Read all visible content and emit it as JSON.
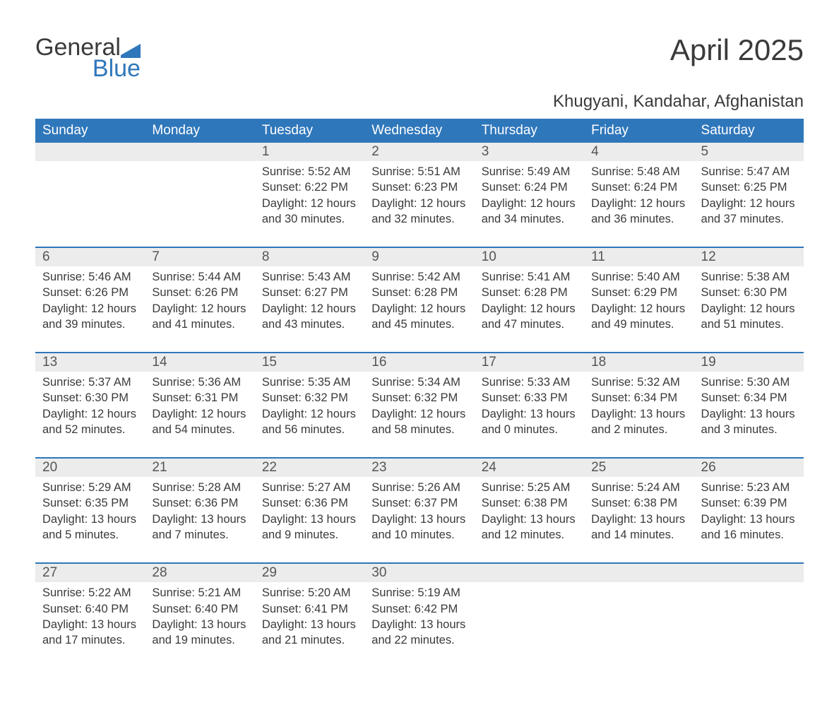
{
  "brand": {
    "word1": "General",
    "word2": "Blue"
  },
  "title": "April 2025",
  "location": "Khugyani, Kandahar, Afghanistan",
  "colors": {
    "header_bg": "#2f77bb",
    "header_text": "#ffffff",
    "daynum_bg": "#ececec",
    "row_border": "#2f77bb",
    "text": "#3a3a3a",
    "brand_blue": "#2f77bb",
    "background": "#ffffff"
  },
  "typography": {
    "month_fontsize": 42,
    "location_fontsize": 24,
    "header_fontsize": 19,
    "daynum_fontsize": 19,
    "body_fontsize": 16.5,
    "logo_fontsize": 34
  },
  "weekdays": [
    "Sunday",
    "Monday",
    "Tuesday",
    "Wednesday",
    "Thursday",
    "Friday",
    "Saturday"
  ],
  "weeks": [
    [
      {
        "day": "",
        "lines": []
      },
      {
        "day": "",
        "lines": []
      },
      {
        "day": "1",
        "lines": [
          "Sunrise: 5:52 AM",
          "Sunset: 6:22 PM",
          "Daylight: 12 hours and 30 minutes."
        ]
      },
      {
        "day": "2",
        "lines": [
          "Sunrise: 5:51 AM",
          "Sunset: 6:23 PM",
          "Daylight: 12 hours and 32 minutes."
        ]
      },
      {
        "day": "3",
        "lines": [
          "Sunrise: 5:49 AM",
          "Sunset: 6:24 PM",
          "Daylight: 12 hours and 34 minutes."
        ]
      },
      {
        "day": "4",
        "lines": [
          "Sunrise: 5:48 AM",
          "Sunset: 6:24 PM",
          "Daylight: 12 hours and 36 minutes."
        ]
      },
      {
        "day": "5",
        "lines": [
          "Sunrise: 5:47 AM",
          "Sunset: 6:25 PM",
          "Daylight: 12 hours and 37 minutes."
        ]
      }
    ],
    [
      {
        "day": "6",
        "lines": [
          "Sunrise: 5:46 AM",
          "Sunset: 6:26 PM",
          "Daylight: 12 hours and 39 minutes."
        ]
      },
      {
        "day": "7",
        "lines": [
          "Sunrise: 5:44 AM",
          "Sunset: 6:26 PM",
          "Daylight: 12 hours and 41 minutes."
        ]
      },
      {
        "day": "8",
        "lines": [
          "Sunrise: 5:43 AM",
          "Sunset: 6:27 PM",
          "Daylight: 12 hours and 43 minutes."
        ]
      },
      {
        "day": "9",
        "lines": [
          "Sunrise: 5:42 AM",
          "Sunset: 6:28 PM",
          "Daylight: 12 hours and 45 minutes."
        ]
      },
      {
        "day": "10",
        "lines": [
          "Sunrise: 5:41 AM",
          "Sunset: 6:28 PM",
          "Daylight: 12 hours and 47 minutes."
        ]
      },
      {
        "day": "11",
        "lines": [
          "Sunrise: 5:40 AM",
          "Sunset: 6:29 PM",
          "Daylight: 12 hours and 49 minutes."
        ]
      },
      {
        "day": "12",
        "lines": [
          "Sunrise: 5:38 AM",
          "Sunset: 6:30 PM",
          "Daylight: 12 hours and 51 minutes."
        ]
      }
    ],
    [
      {
        "day": "13",
        "lines": [
          "Sunrise: 5:37 AM",
          "Sunset: 6:30 PM",
          "Daylight: 12 hours and 52 minutes."
        ]
      },
      {
        "day": "14",
        "lines": [
          "Sunrise: 5:36 AM",
          "Sunset: 6:31 PM",
          "Daylight: 12 hours and 54 minutes."
        ]
      },
      {
        "day": "15",
        "lines": [
          "Sunrise: 5:35 AM",
          "Sunset: 6:32 PM",
          "Daylight: 12 hours and 56 minutes."
        ]
      },
      {
        "day": "16",
        "lines": [
          "Sunrise: 5:34 AM",
          "Sunset: 6:32 PM",
          "Daylight: 12 hours and 58 minutes."
        ]
      },
      {
        "day": "17",
        "lines": [
          "Sunrise: 5:33 AM",
          "Sunset: 6:33 PM",
          "Daylight: 13 hours and 0 minutes."
        ]
      },
      {
        "day": "18",
        "lines": [
          "Sunrise: 5:32 AM",
          "Sunset: 6:34 PM",
          "Daylight: 13 hours and 2 minutes."
        ]
      },
      {
        "day": "19",
        "lines": [
          "Sunrise: 5:30 AM",
          "Sunset: 6:34 PM",
          "Daylight: 13 hours and 3 minutes."
        ]
      }
    ],
    [
      {
        "day": "20",
        "lines": [
          "Sunrise: 5:29 AM",
          "Sunset: 6:35 PM",
          "Daylight: 13 hours and 5 minutes."
        ]
      },
      {
        "day": "21",
        "lines": [
          "Sunrise: 5:28 AM",
          "Sunset: 6:36 PM",
          "Daylight: 13 hours and 7 minutes."
        ]
      },
      {
        "day": "22",
        "lines": [
          "Sunrise: 5:27 AM",
          "Sunset: 6:36 PM",
          "Daylight: 13 hours and 9 minutes."
        ]
      },
      {
        "day": "23",
        "lines": [
          "Sunrise: 5:26 AM",
          "Sunset: 6:37 PM",
          "Daylight: 13 hours and 10 minutes."
        ]
      },
      {
        "day": "24",
        "lines": [
          "Sunrise: 5:25 AM",
          "Sunset: 6:38 PM",
          "Daylight: 13 hours and 12 minutes."
        ]
      },
      {
        "day": "25",
        "lines": [
          "Sunrise: 5:24 AM",
          "Sunset: 6:38 PM",
          "Daylight: 13 hours and 14 minutes."
        ]
      },
      {
        "day": "26",
        "lines": [
          "Sunrise: 5:23 AM",
          "Sunset: 6:39 PM",
          "Daylight: 13 hours and 16 minutes."
        ]
      }
    ],
    [
      {
        "day": "27",
        "lines": [
          "Sunrise: 5:22 AM",
          "Sunset: 6:40 PM",
          "Daylight: 13 hours and 17 minutes."
        ]
      },
      {
        "day": "28",
        "lines": [
          "Sunrise: 5:21 AM",
          "Sunset: 6:40 PM",
          "Daylight: 13 hours and 19 minutes."
        ]
      },
      {
        "day": "29",
        "lines": [
          "Sunrise: 5:20 AM",
          "Sunset: 6:41 PM",
          "Daylight: 13 hours and 21 minutes."
        ]
      },
      {
        "day": "30",
        "lines": [
          "Sunrise: 5:19 AM",
          "Sunset: 6:42 PM",
          "Daylight: 13 hours and 22 minutes."
        ]
      },
      {
        "day": "",
        "lines": []
      },
      {
        "day": "",
        "lines": []
      },
      {
        "day": "",
        "lines": []
      }
    ]
  ]
}
